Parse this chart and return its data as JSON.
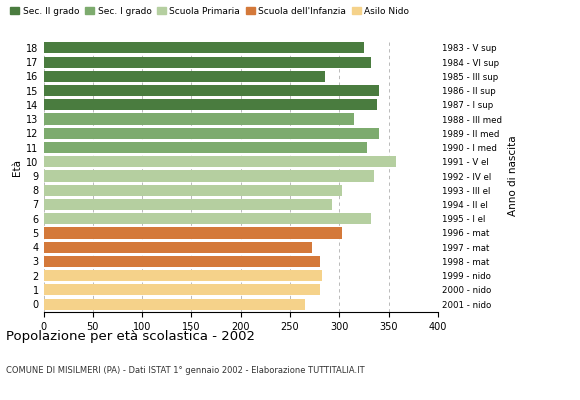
{
  "ages": [
    18,
    17,
    16,
    15,
    14,
    13,
    12,
    11,
    10,
    9,
    8,
    7,
    6,
    5,
    4,
    3,
    2,
    1,
    0
  ],
  "values": [
    325,
    332,
    285,
    340,
    338,
    315,
    340,
    328,
    357,
    335,
    303,
    293,
    332,
    303,
    272,
    280,
    282,
    280,
    265
  ],
  "right_labels": [
    "1983 - V sup",
    "1984 - VI sup",
    "1985 - III sup",
    "1986 - II sup",
    "1987 - I sup",
    "1988 - III med",
    "1989 - II med",
    "1990 - I med",
    "1991 - V el",
    "1992 - IV el",
    "1993 - III el",
    "1994 - II el",
    "1995 - I el",
    "1996 - mat",
    "1997 - mat",
    "1998 - mat",
    "1999 - nido",
    "2000 - nido",
    "2001 - nido"
  ],
  "colors": [
    "#4a7c3f",
    "#4a7c3f",
    "#4a7c3f",
    "#4a7c3f",
    "#4a7c3f",
    "#7dab6e",
    "#7dab6e",
    "#7dab6e",
    "#b5cfa0",
    "#b5cfa0",
    "#b5cfa0",
    "#b5cfa0",
    "#b5cfa0",
    "#d4793a",
    "#d4793a",
    "#d4793a",
    "#f5d28a",
    "#f5d28a",
    "#f5d28a"
  ],
  "legend_labels": [
    "Sec. II grado",
    "Sec. I grado",
    "Scuola Primaria",
    "Scuola dell'Infanzia",
    "Asilo Nido"
  ],
  "legend_colors": [
    "#4a7c3f",
    "#7dab6e",
    "#b5cfa0",
    "#d4793a",
    "#f5d28a"
  ],
  "ylabel": "Età",
  "right_ylabel": "Anno di nascita",
  "title": "Popolazione per età scolastica - 2002",
  "subtitle": "COMUNE DI MISILMERI (PA) - Dati ISTAT 1° gennaio 2002 - Elaborazione TUTTITALIA.IT",
  "xlim": [
    0,
    400
  ],
  "xticks": [
    0,
    50,
    100,
    150,
    200,
    250,
    300,
    350,
    400
  ],
  "bg_color": "#ffffff",
  "bar_height": 0.78
}
